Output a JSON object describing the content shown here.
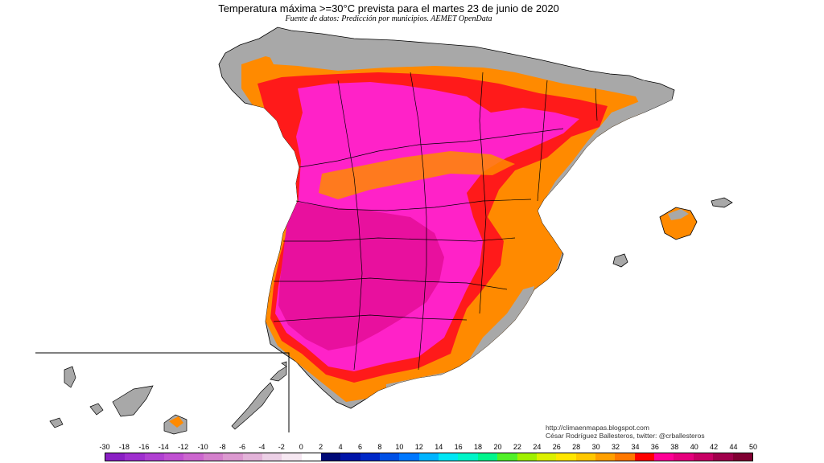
{
  "title": "Temperatura máxima >=30°C prevista para el martes 23 de junio de 2020",
  "subtitle": "Fuente de datos: Predicción por municipios. AEMET OpenData",
  "credits": {
    "url": "http://climaenmapas.blogspot.com",
    "author": "César Rodríguez Ballesteros, twitter: @crballesteros"
  },
  "legend": {
    "labels": [
      "-30",
      "-18",
      "-16",
      "-14",
      "-12",
      "-10",
      "-8",
      "-6",
      "-4",
      "-2",
      "0",
      "2",
      "4",
      "6",
      "8",
      "10",
      "12",
      "14",
      "16",
      "18",
      "20",
      "22",
      "24",
      "26",
      "28",
      "30",
      "32",
      "34",
      "36",
      "38",
      "40",
      "42",
      "44",
      "50"
    ],
    "colors": [
      "#8a1fc4",
      "#9f2fcf",
      "#b040d2",
      "#c050d2",
      "#cc66cf",
      "#d480cc",
      "#dc99d0",
      "#e3b3d9",
      "#ecd0e6",
      "#f6e8f2",
      "#ffffff",
      "#000a78",
      "#0014a8",
      "#0028c8",
      "#0050e6",
      "#0078ff",
      "#00b4ff",
      "#00e6f5",
      "#00f5c8",
      "#00f58c",
      "#50f028",
      "#a0f000",
      "#dcf000",
      "#ffe600",
      "#ffc800",
      "#ffa000",
      "#ff7800",
      "#ff0000",
      "#ff0096",
      "#e6007d",
      "#c80064",
      "#a0004b",
      "#800032"
    ]
  },
  "map_colors": {
    "background_land": "#a8a8a8",
    "temp_30_32": "#ff8a00",
    "temp_32_34": "#ff1a1a",
    "temp_34_36": "#ff22c8",
    "temp_36_38": "#e8109e",
    "border": "#000000"
  }
}
